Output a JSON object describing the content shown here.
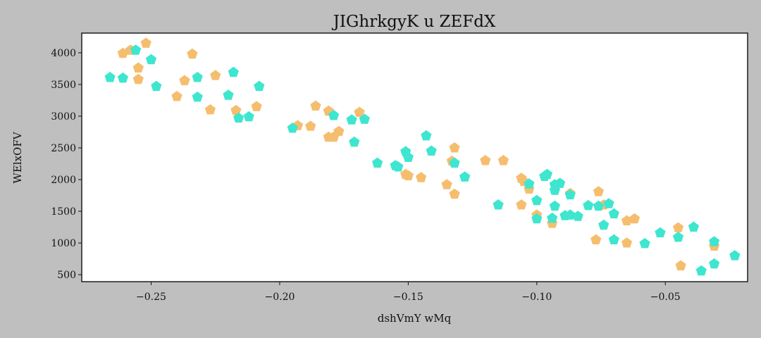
{
  "chart_data": {
    "type": "scatter",
    "title": "JIGhrkgyK u ZEFdX",
    "xlabel": "dshVmY wMq",
    "ylabel": "WElxOFV",
    "xlim": [
      -0.277,
      -0.018
    ],
    "ylim": [
      390,
      4310
    ],
    "x_ticks": [
      -0.25,
      -0.2,
      -0.15,
      -0.1,
      -0.05
    ],
    "x_tick_labels": [
      "−0.25",
      "−0.20",
      "−0.15",
      "−0.10",
      "−0.05"
    ],
    "y_ticks": [
      500,
      1000,
      1500,
      2000,
      2500,
      3000,
      3500,
      4000
    ],
    "y_tick_labels": [
      "500",
      "1000",
      "1500",
      "2000",
      "2500",
      "3000",
      "3500",
      "4000"
    ],
    "grid": false,
    "marker": "pentagon",
    "series": [
      {
        "color": "#f5be6e",
        "points": [
          [
            -0.261,
            3990
          ],
          [
            -0.258,
            4040
          ],
          [
            -0.252,
            4150
          ],
          [
            -0.255,
            3760
          ],
          [
            -0.255,
            3580
          ],
          [
            -0.234,
            3980
          ],
          [
            -0.237,
            3560
          ],
          [
            -0.24,
            3310
          ],
          [
            -0.227,
            3100
          ],
          [
            -0.225,
            3640
          ],
          [
            -0.217,
            3090
          ],
          [
            -0.209,
            3150
          ],
          [
            -0.186,
            3160
          ],
          [
            -0.181,
            3080
          ],
          [
            -0.193,
            2850
          ],
          [
            -0.188,
            2840
          ],
          [
            -0.181,
            2670
          ],
          [
            -0.179,
            2670
          ],
          [
            -0.177,
            2760
          ],
          [
            -0.169,
            3060
          ],
          [
            -0.15,
            2060
          ],
          [
            -0.151,
            2080
          ],
          [
            -0.145,
            2030
          ],
          [
            -0.135,
            1920
          ],
          [
            -0.133,
            2290
          ],
          [
            -0.132,
            2500
          ],
          [
            -0.132,
            1770
          ],
          [
            -0.12,
            2300
          ],
          [
            -0.113,
            2300
          ],
          [
            -0.106,
            2020
          ],
          [
            -0.105,
            1970
          ],
          [
            -0.103,
            1850
          ],
          [
            -0.106,
            1600
          ],
          [
            -0.1,
            1440
          ],
          [
            -0.094,
            1310
          ],
          [
            -0.087,
            1780
          ],
          [
            -0.076,
            1810
          ],
          [
            -0.074,
            1600
          ],
          [
            -0.077,
            1050
          ],
          [
            -0.065,
            1350
          ],
          [
            -0.065,
            1000
          ],
          [
            -0.062,
            1380
          ],
          [
            -0.045,
            1240
          ],
          [
            -0.044,
            640
          ],
          [
            -0.031,
            950
          ]
        ]
      },
      {
        "color": "#3ee6cf",
        "points": [
          [
            -0.266,
            3610
          ],
          [
            -0.261,
            3600
          ],
          [
            -0.256,
            4040
          ],
          [
            -0.25,
            3890
          ],
          [
            -0.248,
            3470
          ],
          [
            -0.232,
            3300
          ],
          [
            -0.232,
            3610
          ],
          [
            -0.218,
            3690
          ],
          [
            -0.22,
            3330
          ],
          [
            -0.216,
            2970
          ],
          [
            -0.212,
            2990
          ],
          [
            -0.208,
            3470
          ],
          [
            -0.195,
            2810
          ],
          [
            -0.179,
            3010
          ],
          [
            -0.172,
            2940
          ],
          [
            -0.171,
            2590
          ],
          [
            -0.167,
            2950
          ],
          [
            -0.162,
            2260
          ],
          [
            -0.155,
            2220
          ],
          [
            -0.154,
            2200
          ],
          [
            -0.151,
            2440
          ],
          [
            -0.15,
            2350
          ],
          [
            -0.143,
            2690
          ],
          [
            -0.141,
            2450
          ],
          [
            -0.132,
            2260
          ],
          [
            -0.128,
            2040
          ],
          [
            -0.115,
            1600
          ],
          [
            -0.103,
            1930
          ],
          [
            -0.1,
            1670
          ],
          [
            -0.1,
            1380
          ],
          [
            -0.097,
            2050
          ],
          [
            -0.096,
            2080
          ],
          [
            -0.093,
            1920
          ],
          [
            -0.093,
            1830
          ],
          [
            -0.091,
            1940
          ],
          [
            -0.093,
            1580
          ],
          [
            -0.094,
            1390
          ],
          [
            -0.089,
            1430
          ],
          [
            -0.087,
            1440
          ],
          [
            -0.087,
            1760
          ],
          [
            -0.084,
            1420
          ],
          [
            -0.08,
            1590
          ],
          [
            -0.076,
            1580
          ],
          [
            -0.074,
            1280
          ],
          [
            -0.072,
            1620
          ],
          [
            -0.07,
            1460
          ],
          [
            -0.07,
            1050
          ],
          [
            -0.058,
            990
          ],
          [
            -0.052,
            1160
          ],
          [
            -0.045,
            1090
          ],
          [
            -0.039,
            1250
          ],
          [
            -0.036,
            560
          ],
          [
            -0.031,
            1020
          ],
          [
            -0.031,
            670
          ],
          [
            -0.023,
            800
          ]
        ]
      }
    ]
  }
}
